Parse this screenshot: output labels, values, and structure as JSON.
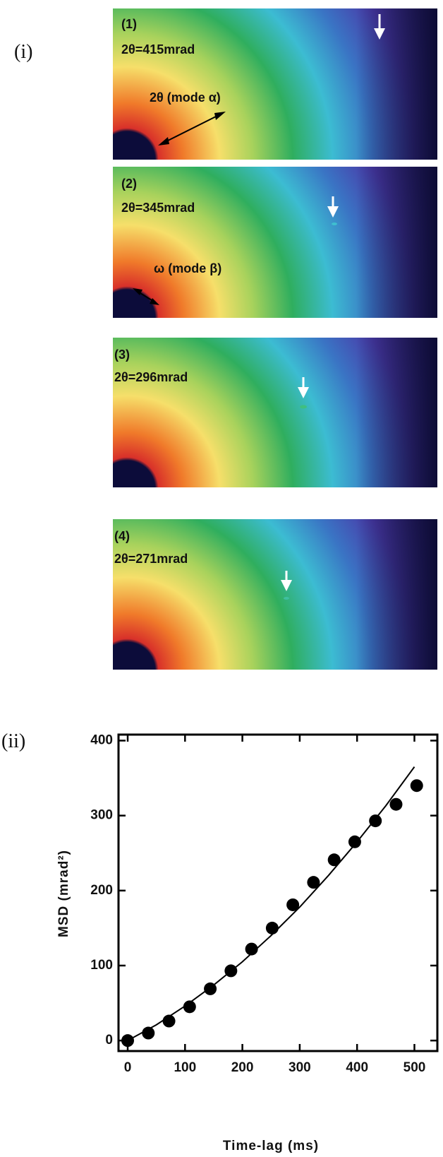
{
  "figure_labels": [
    "(i)",
    "(ii)"
  ],
  "panels": [
    {
      "number": "(1)",
      "angle": "2θ=415mrad",
      "mode": "2θ (mode α)"
    },
    {
      "number": "(2)",
      "angle": "2θ=345mrad",
      "mode": "ω (mode β)"
    },
    {
      "number": "(3)",
      "angle": "2θ=296mrad"
    },
    {
      "number": "(4)",
      "angle": "2θ=271mrad"
    }
  ],
  "chart_data": {
    "type": "scatter",
    "x_label": "Time-lag (ms)",
    "y_label": "MSD (mrad²)",
    "xlim": [
      -16,
      540
    ],
    "ylim": [
      -14,
      408
    ],
    "xticks": [
      0,
      100,
      200,
      300,
      400,
      500
    ],
    "yticks": [
      0,
      100,
      200,
      300,
      400
    ],
    "series": [
      {
        "type": "scatter",
        "color": "#000000",
        "x": [
          0,
          36,
          72,
          108,
          144,
          180,
          216,
          252,
          288,
          324,
          360,
          396,
          432,
          468,
          504
        ],
        "values": [
          0,
          10,
          26,
          45,
          69,
          93,
          122,
          150,
          181,
          211,
          241,
          265,
          293,
          315,
          340
        ]
      },
      {
        "type": "line",
        "color": "#000000",
        "x": [
          0,
          50,
          100,
          150,
          200,
          250,
          300,
          350,
          400,
          450,
          500
        ],
        "values": [
          0,
          21,
          46,
          74,
          105,
          140,
          178,
          220,
          265,
          313,
          365
        ]
      }
    ]
  }
}
